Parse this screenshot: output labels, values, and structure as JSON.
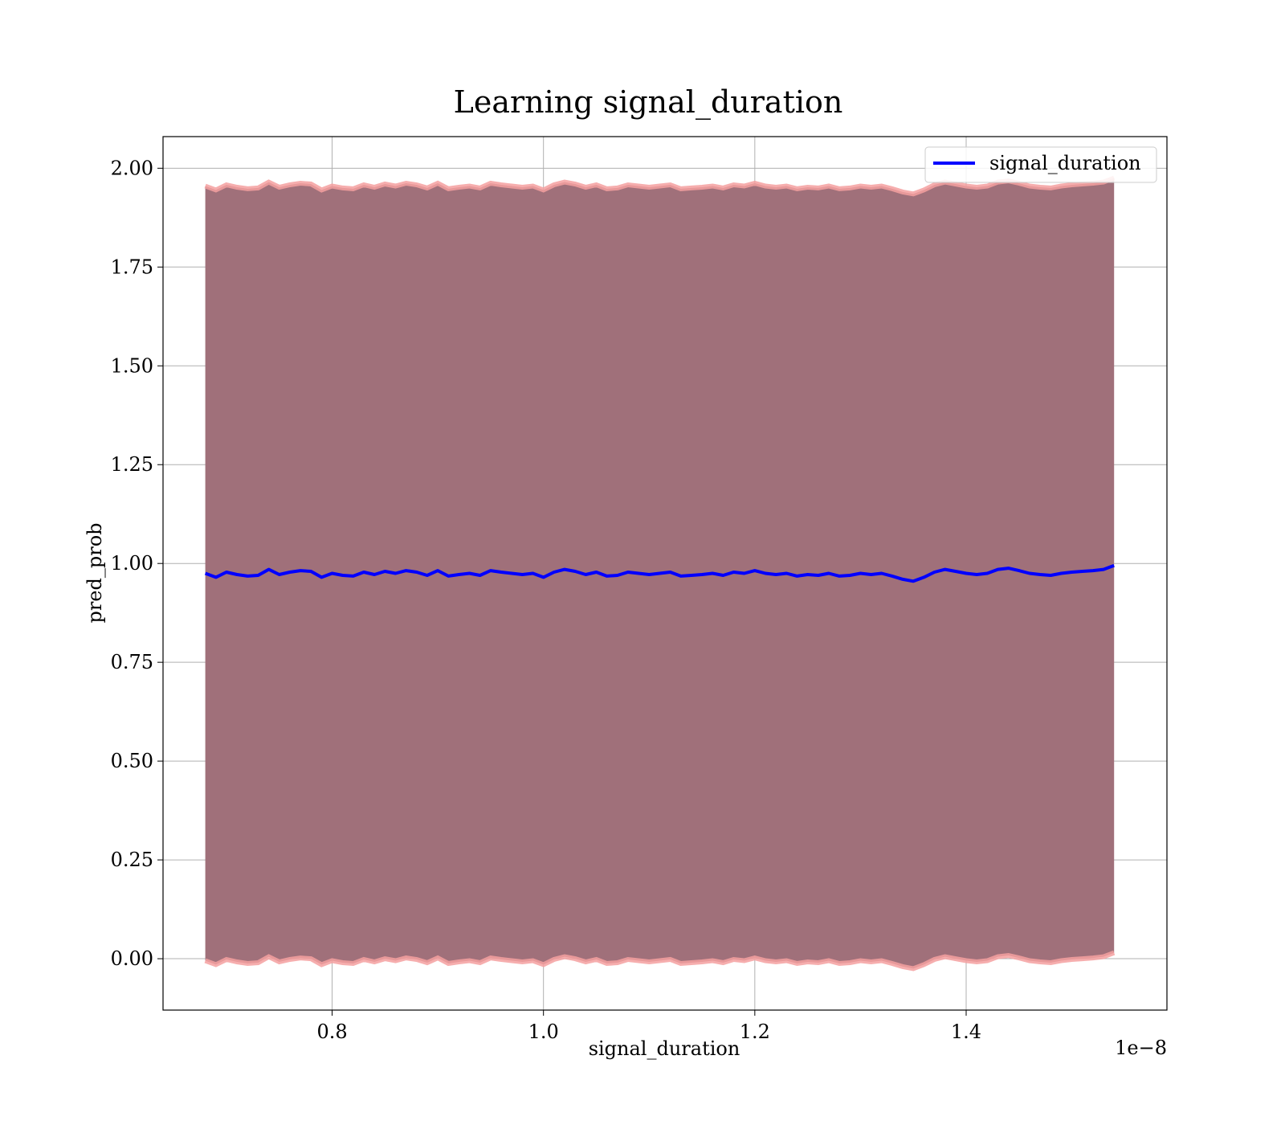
{
  "chart_data": {
    "type": "line",
    "title": "Learning signal_duration",
    "xlabel": "signal_duration",
    "ylabel": "pred_prob",
    "x_offset_label": "1e−8",
    "x_scale": 1e-08,
    "xlim": [
      0.64,
      1.59
    ],
    "ylim": [
      -0.13,
      2.08
    ],
    "x_ticks": [
      0.8,
      1.0,
      1.2,
      1.4
    ],
    "x_tick_labels": [
      "0.8",
      "1.0",
      "1.2",
      "1.4"
    ],
    "y_ticks": [
      0.0,
      0.25,
      0.5,
      0.75,
      1.0,
      1.25,
      1.5,
      1.75,
      2.0
    ],
    "y_tick_labels": [
      "0.00",
      "0.25",
      "0.50",
      "0.75",
      "1.00",
      "1.25",
      "1.50",
      "1.75",
      "2.00"
    ],
    "grid": true,
    "legend_position": "top-right",
    "colors": {
      "line": "#0000ff",
      "band_fill": "#a0707a",
      "band_edge": "#f4a0a0",
      "grid": "#b0b0b0",
      "axes": "#000000"
    },
    "x": [
      0.68,
      0.69,
      0.7,
      0.71,
      0.72,
      0.73,
      0.74,
      0.75,
      0.76,
      0.77,
      0.78,
      0.79,
      0.8,
      0.81,
      0.82,
      0.83,
      0.84,
      0.85,
      0.86,
      0.87,
      0.88,
      0.89,
      0.9,
      0.91,
      0.92,
      0.93,
      0.94,
      0.95,
      0.96,
      0.97,
      0.98,
      0.99,
      1.0,
      1.01,
      1.02,
      1.03,
      1.04,
      1.05,
      1.06,
      1.07,
      1.08,
      1.09,
      1.1,
      1.11,
      1.12,
      1.13,
      1.14,
      1.15,
      1.16,
      1.17,
      1.18,
      1.19,
      1.2,
      1.21,
      1.22,
      1.23,
      1.24,
      1.25,
      1.26,
      1.27,
      1.28,
      1.29,
      1.3,
      1.31,
      1.32,
      1.33,
      1.34,
      1.35,
      1.36,
      1.37,
      1.38,
      1.39,
      1.4,
      1.41,
      1.42,
      1.43,
      1.44,
      1.45,
      1.46,
      1.47,
      1.48,
      1.49,
      1.5,
      1.51,
      1.52,
      1.53,
      1.54
    ],
    "series": [
      {
        "name": "signal_duration",
        "values": [
          0.975,
          0.965,
          0.978,
          0.972,
          0.968,
          0.97,
          0.985,
          0.972,
          0.978,
          0.982,
          0.98,
          0.965,
          0.975,
          0.97,
          0.968,
          0.978,
          0.972,
          0.98,
          0.975,
          0.982,
          0.978,
          0.97,
          0.982,
          0.968,
          0.972,
          0.975,
          0.97,
          0.982,
          0.978,
          0.975,
          0.972,
          0.975,
          0.965,
          0.978,
          0.985,
          0.98,
          0.972,
          0.978,
          0.968,
          0.97,
          0.978,
          0.975,
          0.972,
          0.975,
          0.978,
          0.968,
          0.97,
          0.972,
          0.975,
          0.97,
          0.978,
          0.975,
          0.982,
          0.975,
          0.972,
          0.975,
          0.968,
          0.972,
          0.97,
          0.975,
          0.968,
          0.97,
          0.975,
          0.972,
          0.975,
          0.968,
          0.96,
          0.955,
          0.965,
          0.978,
          0.985,
          0.98,
          0.975,
          0.972,
          0.975,
          0.985,
          0.988,
          0.982,
          0.975,
          0.972,
          0.97,
          0.975,
          0.978,
          0.98,
          0.982,
          0.985,
          0.995
        ]
      }
    ],
    "band_halfwidth": 0.98
  }
}
